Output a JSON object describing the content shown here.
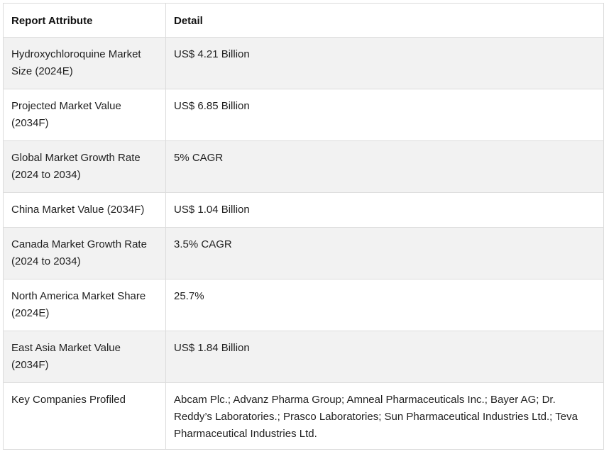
{
  "table": {
    "headers": [
      "Report Attribute",
      "Detail"
    ],
    "rows": [
      {
        "attribute": "Hydroxychloroquine Market Size (2024E)",
        "detail": "US$ 4.21 Billion"
      },
      {
        "attribute": "Projected Market Value (2034F)",
        "detail": "US$ 6.85 Billion"
      },
      {
        "attribute": "Global Market Growth Rate (2024 to 2034)",
        "detail": "5% CAGR"
      },
      {
        "attribute": "China Market Value (2034F)",
        "detail": "US$ 1.04 Billion"
      },
      {
        "attribute": "Canada Market Growth Rate (2024 to 2034)",
        "detail": "3.5% CAGR"
      },
      {
        "attribute": "North America Market Share (2024E)",
        "detail": "25.7%"
      },
      {
        "attribute": "East Asia Market Value (2034F)",
        "detail": "US$ 1.84 Billion"
      },
      {
        "attribute": "Key Companies Profiled",
        "detail": "Abcam Plc.; Advanz Pharma Group; Amneal Pharmaceuticals Inc.; Bayer AG; Dr. Reddy’s Laboratories.; Prasco Laboratories; Sun Pharmaceutical Industries Ltd.; Teva Pharmaceutical Industries Ltd."
      }
    ]
  }
}
